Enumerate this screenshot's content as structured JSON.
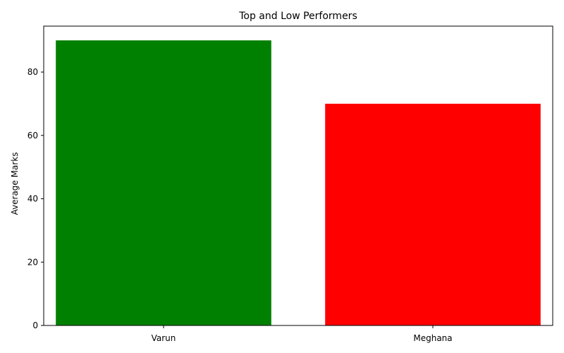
{
  "chart_data": {
    "type": "bar",
    "title": "Top and Low Performers",
    "xlabel": "",
    "ylabel": "Average Marks",
    "categories": [
      "Varun",
      "Meghana"
    ],
    "values": [
      90,
      70
    ],
    "colors": [
      "#008000",
      "#ff0000"
    ],
    "ylim": [
      0,
      94.5
    ],
    "yticks": [
      0,
      20,
      40,
      60,
      80
    ],
    "grid": false
  }
}
